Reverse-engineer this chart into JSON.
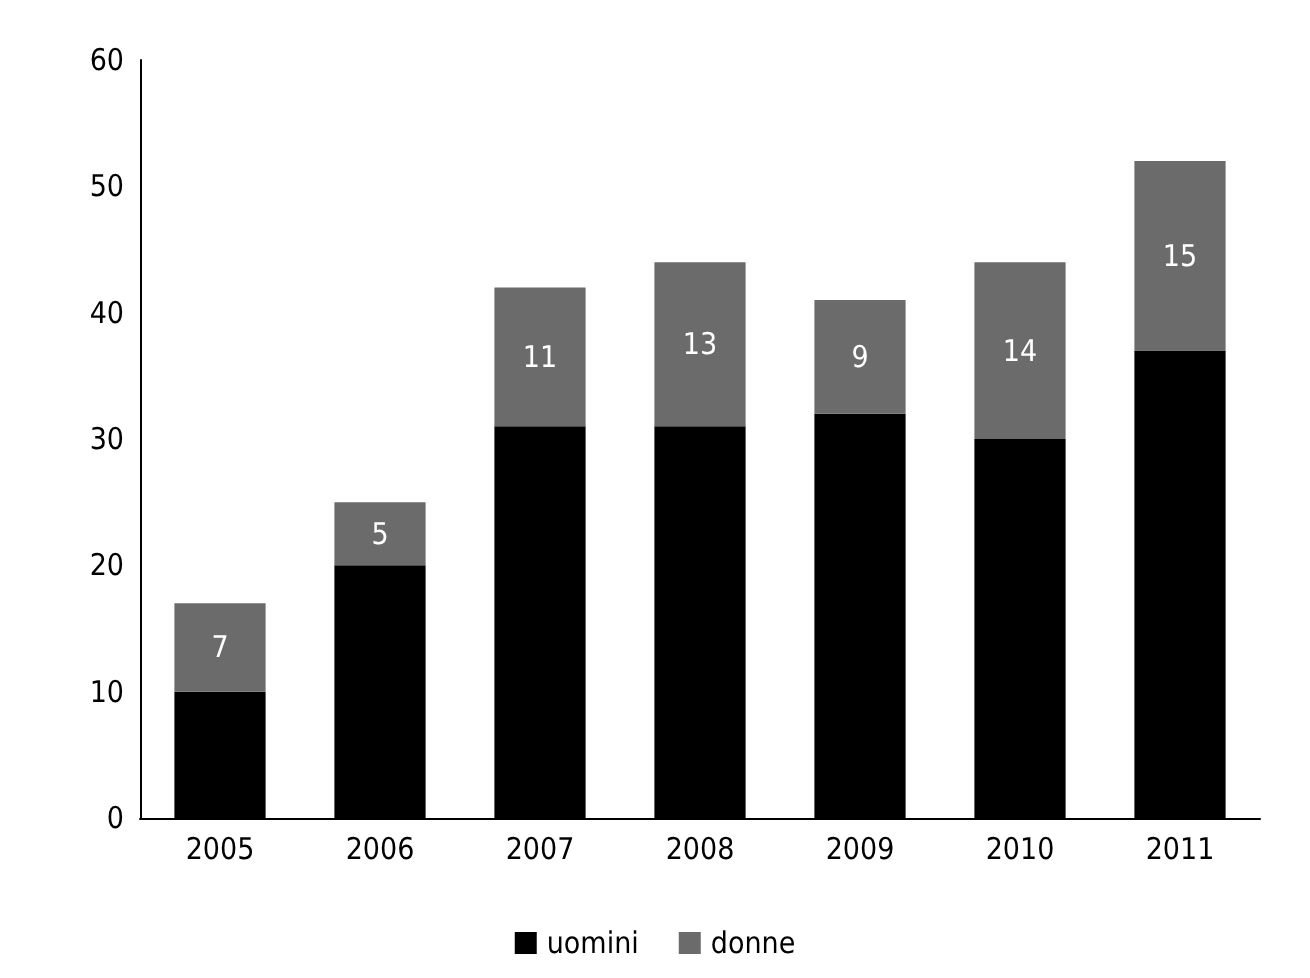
{
  "chart_data": {
    "type": "bar",
    "stacked": true,
    "categories": [
      "2005",
      "2006",
      "2007",
      "2008",
      "2009",
      "2010",
      "2011"
    ],
    "series": [
      {
        "name": "uomini",
        "color": "#000000",
        "values": [
          10,
          20,
          31,
          31,
          32,
          30,
          37
        ]
      },
      {
        "name": "donne",
        "color": "#6b6b6b",
        "values": [
          7,
          5,
          11,
          13,
          9,
          14,
          15
        ],
        "value_labels": [
          "7",
          "5",
          "11",
          "13",
          "9",
          "14",
          "15"
        ]
      }
    ],
    "ylim": [
      0,
      60
    ],
    "yticks": [
      0,
      10,
      20,
      30,
      40,
      50,
      60
    ],
    "grid": false,
    "legend": "bottom"
  }
}
